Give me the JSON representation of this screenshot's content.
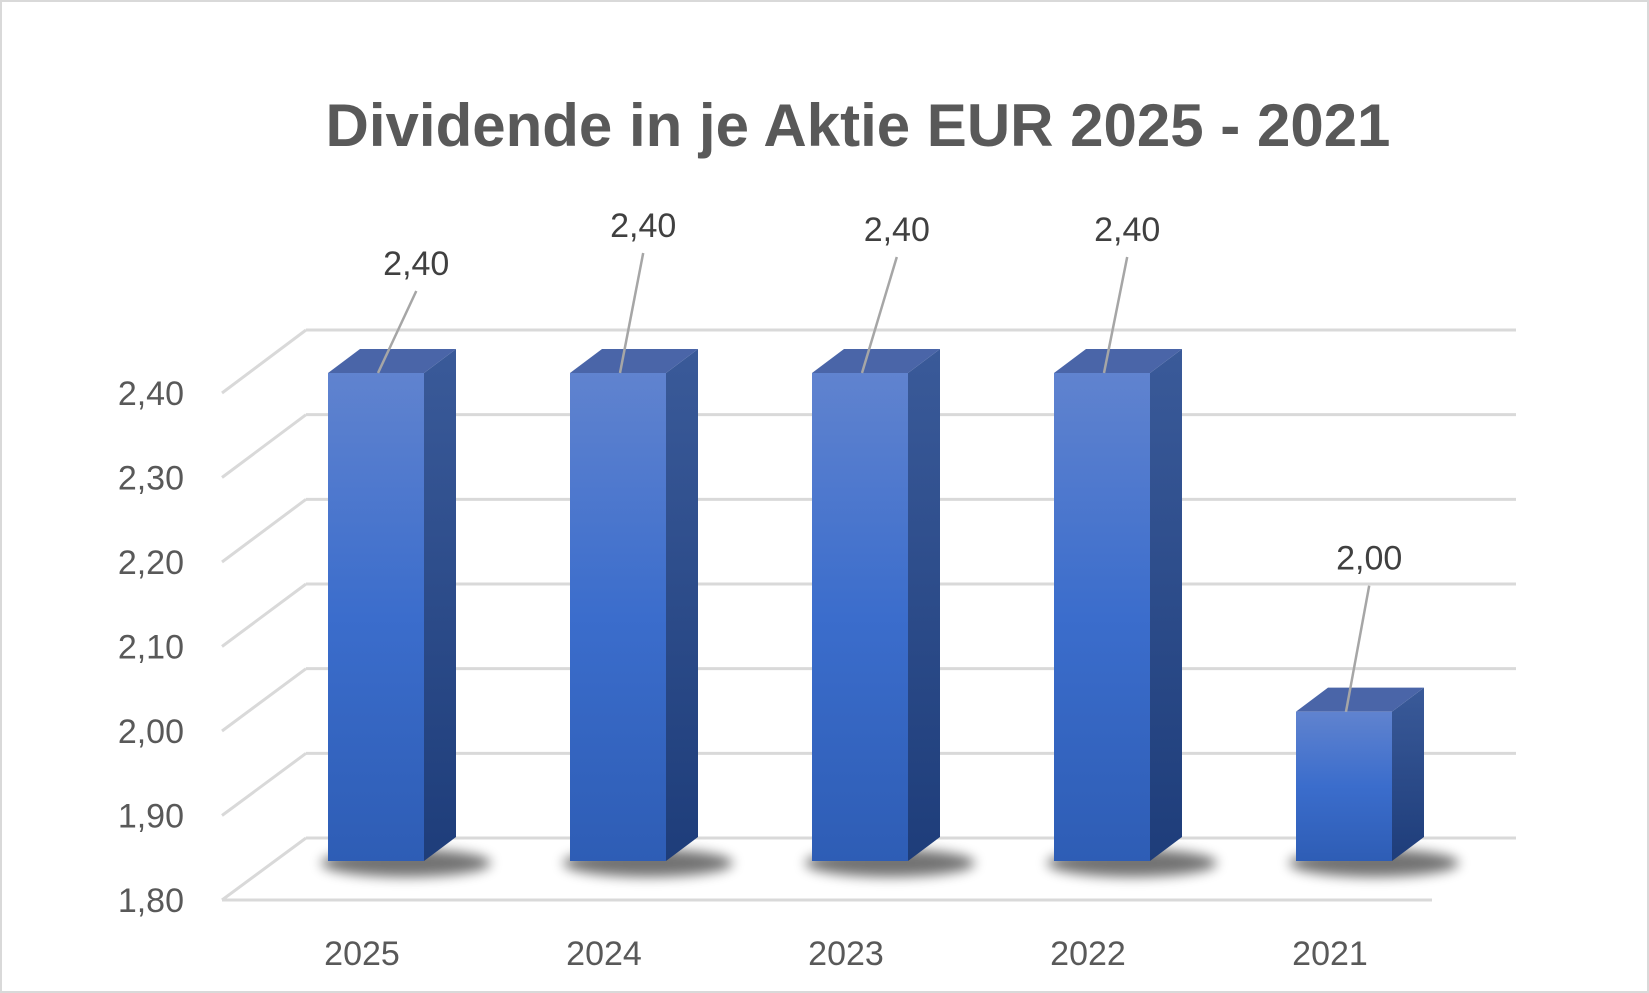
{
  "chart_data": {
    "type": "bar",
    "title": "Dividende in je Aktie EUR 2025 - 2021",
    "xlabel": "",
    "ylabel": "",
    "categories": [
      "2025",
      "2024",
      "2023",
      "2022",
      "2021"
    ],
    "values": [
      2.4,
      2.4,
      2.4,
      2.4,
      2.0
    ],
    "data_labels": [
      "2,40",
      "2,40",
      "2,40",
      "2,40",
      "2,00"
    ],
    "ylim": [
      1.8,
      2.4
    ],
    "yticks": [
      "1,80",
      "1,90",
      "2,00",
      "2,10",
      "2,20",
      "2,30",
      "2,40"
    ],
    "grid": true,
    "legend": "none",
    "style": "3d-column",
    "colors": {
      "bar_front": "#4472c4",
      "bar_side": "#2f4f8a",
      "bar_top": "#5b7fc8",
      "grid": "#d9d9d9",
      "text": "#595959"
    }
  }
}
